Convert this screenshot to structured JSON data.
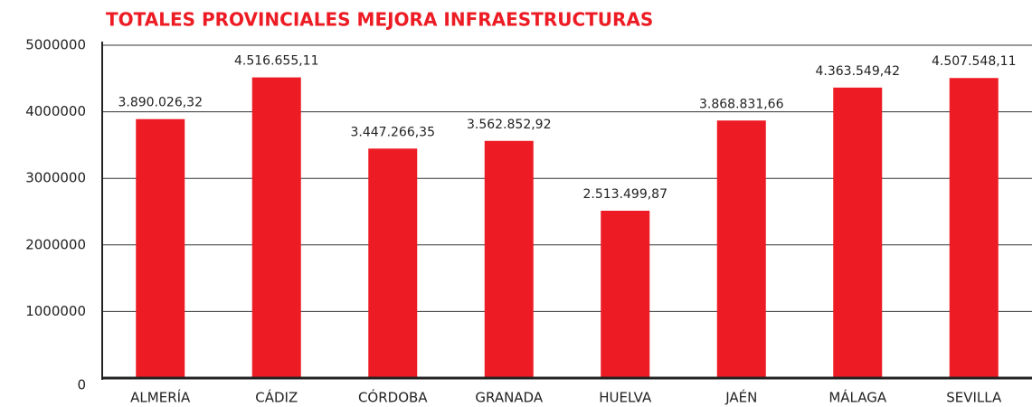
{
  "chart_data": {
    "type": "bar",
    "title": "TOTALES PROVINCIALES MEJORA INFRAESTRUCTURAS",
    "categories": [
      "ALMERÍA",
      "CÁDIZ",
      "CÓRDOBA",
      "GRANADA",
      "HUELVA",
      "JAÉN",
      "MÁLAGA",
      "SEVILLA"
    ],
    "values": [
      3890026.32,
      4516655.11,
      3447266.35,
      3562852.92,
      2513499.87,
      3868831.66,
      4363549.42,
      4507548.11
    ],
    "value_labels": [
      "3.890.026,32",
      "4.516.655,11",
      "3.447.266,35",
      "3.562.852,92",
      "2.513.499,87",
      "3.868.831,66",
      "4.363.549,42",
      "4.507.548,11"
    ],
    "color": "#ed1c24",
    "ylim": [
      0,
      5000000
    ],
    "yticks": [
      0,
      1000000,
      2000000,
      3000000,
      4000000,
      5000000
    ],
    "grid": true
  }
}
